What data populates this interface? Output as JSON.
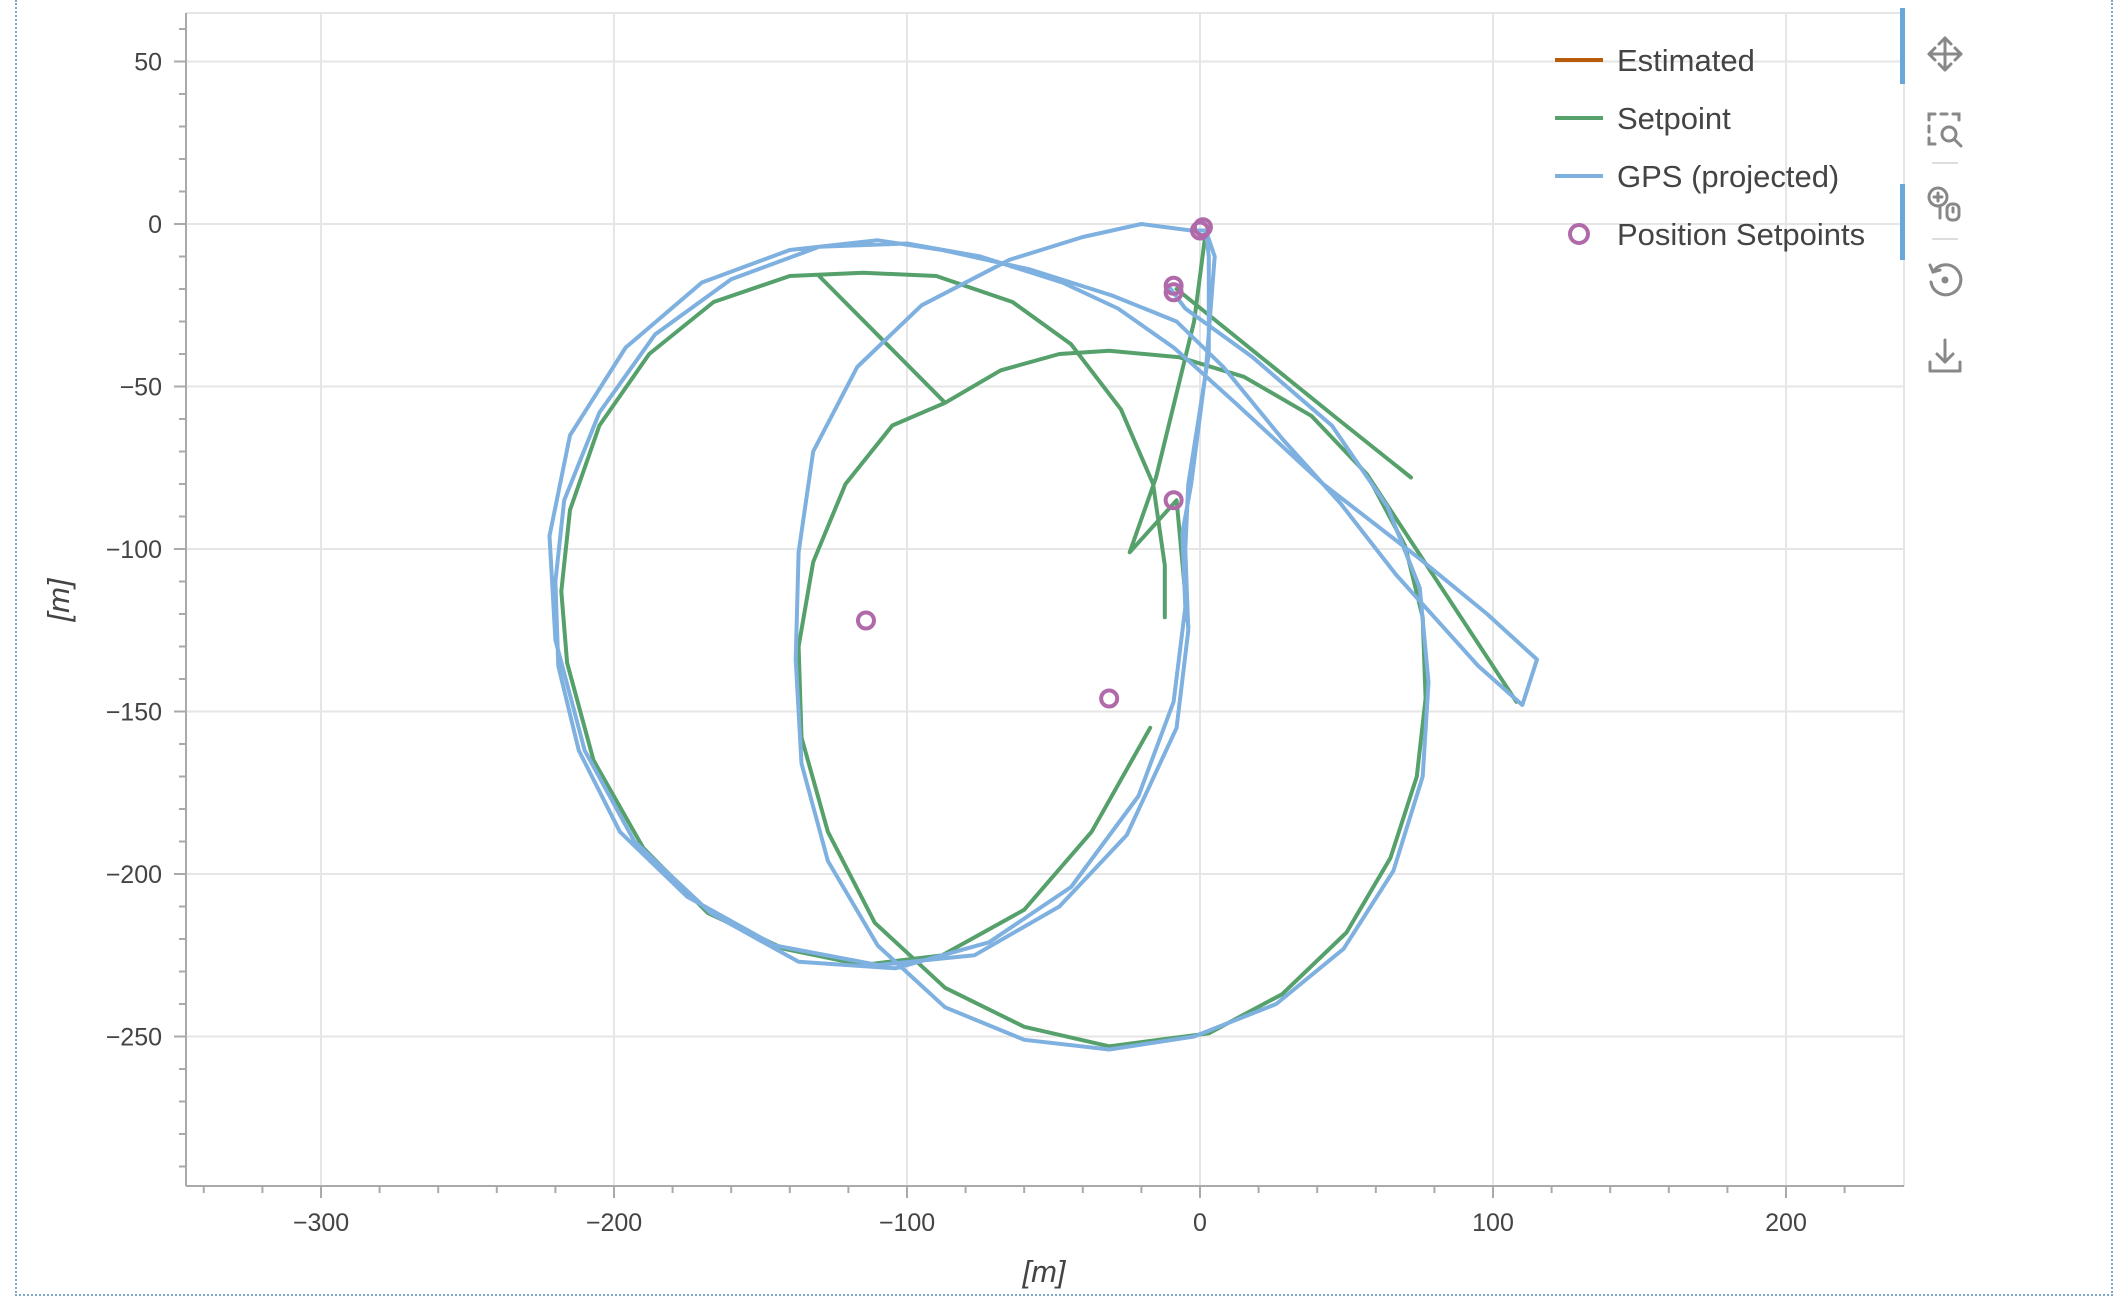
{
  "chart_data": {
    "type": "line",
    "title": "",
    "xlabel": "[m]",
    "ylabel": "[m]",
    "xlim": [
      -345,
      240
    ],
    "ylim": [
      -295,
      65
    ],
    "xticks": [
      -300,
      -200,
      -100,
      0,
      100,
      200
    ],
    "yticks": [
      50,
      0,
      -50,
      -100,
      -150,
      -200,
      -250
    ],
    "xtick_labels": [
      "−300",
      "−200",
      "−100",
      "0",
      "100",
      "200"
    ],
    "ytick_labels": [
      "50",
      "0",
      "−50",
      "−100",
      "−150",
      "−200",
      "−250"
    ],
    "grid": true,
    "legend_position": "top-right",
    "series": [
      {
        "name": "Estimated",
        "kind": "line",
        "color": "#b85c0c",
        "points": []
      },
      {
        "name": "Setpoint",
        "kind": "line",
        "color": "#55a06b",
        "points": [
          [
            2,
            -2
          ],
          [
            -2,
            -30
          ],
          [
            -15,
            -78
          ],
          [
            -24,
            -101
          ],
          [
            -8,
            -85
          ],
          [
            -4,
            -124
          ],
          [
            -17,
            -155
          ],
          [
            -37,
            -187
          ],
          [
            -60,
            -211
          ],
          [
            -88,
            -225
          ],
          [
            -115,
            -228
          ],
          [
            -142,
            -223
          ],
          [
            -168,
            -212
          ],
          [
            -190,
            -192
          ],
          [
            -207,
            -165
          ],
          [
            -216,
            -135
          ],
          [
            -218,
            -113
          ],
          [
            -215,
            -88
          ],
          [
            -205,
            -62
          ],
          [
            -188,
            -40
          ],
          [
            -166,
            -24
          ],
          [
            -140,
            -16
          ],
          [
            -115,
            -15
          ],
          [
            -90,
            -16
          ],
          [
            -64,
            -24
          ],
          [
            -44,
            -37
          ],
          [
            -27,
            -57
          ],
          [
            -16,
            -80
          ],
          [
            -12,
            -105
          ],
          [
            -12,
            -121
          ],
          [
            -130,
            -16
          ],
          [
            -87,
            -55
          ],
          [
            -87,
            -55
          ],
          [
            -68,
            -45
          ],
          [
            -48,
            -40
          ],
          [
            -31,
            -39
          ],
          [
            -7,
            -41
          ],
          [
            15,
            -47
          ],
          [
            38,
            -59
          ],
          [
            57,
            -77
          ],
          [
            70,
            -99
          ],
          [
            76,
            -121
          ],
          [
            77,
            -146
          ],
          [
            74,
            -170
          ],
          [
            65,
            -195
          ],
          [
            50,
            -218
          ],
          [
            28,
            -237
          ],
          [
            3,
            -249
          ],
          [
            -31,
            -253
          ],
          [
            -60,
            -247
          ],
          [
            -87,
            -235
          ],
          [
            -111,
            -215
          ],
          [
            -127,
            -187
          ],
          [
            -136,
            -158
          ],
          [
            -137,
            -130
          ],
          [
            -132,
            -104
          ],
          [
            -121,
            -80
          ],
          [
            -105,
            -62
          ],
          [
            -87,
            -55
          ],
          [
            57,
            -77
          ],
          [
            108,
            -147
          ],
          [
            -8,
            -20
          ],
          [
            47,
            -60
          ],
          [
            72,
            -78
          ]
        ]
      },
      {
        "name": "GPS (projected)",
        "kind": "line",
        "color": "#7eb0e0",
        "points": [
          [
            2,
            -2
          ],
          [
            3,
            -10
          ],
          [
            3,
            -40
          ],
          [
            -4,
            -80
          ],
          [
            -5,
            -100
          ],
          [
            -4,
            -125
          ],
          [
            -8,
            -155
          ],
          [
            -25,
            -188
          ],
          [
            -48,
            -210
          ],
          [
            -77,
            -225
          ],
          [
            -110,
            -228
          ],
          [
            -145,
            -222
          ],
          [
            -175,
            -207
          ],
          [
            -198,
            -187
          ],
          [
            -212,
            -162
          ],
          [
            -219,
            -136
          ],
          [
            -220,
            -110
          ],
          [
            -217,
            -85
          ],
          [
            -205,
            -58
          ],
          [
            -186,
            -34
          ],
          [
            -160,
            -17
          ],
          [
            -130,
            -7
          ],
          [
            -100,
            -6
          ],
          [
            -75,
            -10
          ],
          [
            -47,
            -18
          ],
          [
            -28,
            -26
          ],
          [
            -9,
            -38
          ],
          [
            -4,
            -42
          ],
          [
            -4,
            -42
          ],
          [
            12,
            -55
          ],
          [
            42,
            -80
          ],
          [
            75,
            -103
          ],
          [
            98,
            -120
          ],
          [
            115,
            -134
          ],
          [
            110,
            -148
          ],
          [
            95,
            -136
          ],
          [
            67,
            -108
          ],
          [
            48,
            -86
          ],
          [
            28,
            -66
          ],
          [
            8,
            -44
          ],
          [
            -8,
            -30
          ],
          [
            -8,
            -30
          ],
          [
            -30,
            -22
          ],
          [
            -58,
            -14
          ],
          [
            -88,
            -8
          ],
          [
            -110,
            -5
          ],
          [
            -140,
            -8
          ],
          [
            -170,
            -18
          ],
          [
            -196,
            -38
          ],
          [
            -215,
            -65
          ],
          [
            -222,
            -96
          ],
          [
            -220,
            -128
          ],
          [
            -210,
            -162
          ],
          [
            -193,
            -190
          ],
          [
            -167,
            -212
          ],
          [
            -137,
            -227
          ],
          [
            -104,
            -229
          ],
          [
            -72,
            -221
          ],
          [
            -44,
            -204
          ],
          [
            -21,
            -176
          ],
          [
            -9,
            -147
          ],
          [
            -5,
            -118
          ],
          [
            -6,
            -95
          ],
          [
            -3,
            -80
          ],
          [
            2,
            -45
          ],
          [
            5,
            -10
          ],
          [
            2,
            -2
          ],
          [
            -3,
            -2
          ],
          [
            -20,
            0
          ],
          [
            -40,
            -4
          ],
          [
            -65,
            -11
          ],
          [
            -95,
            -25
          ],
          [
            -117,
            -44
          ],
          [
            -132,
            -70
          ],
          [
            -137,
            -101
          ],
          [
            -138,
            -134
          ],
          [
            -136,
            -166
          ],
          [
            -127,
            -196
          ],
          [
            -110,
            -222
          ],
          [
            -87,
            -241
          ],
          [
            -60,
            -251
          ],
          [
            -31,
            -254
          ],
          [
            -2,
            -250
          ],
          [
            26,
            -240
          ],
          [
            49,
            -223
          ],
          [
            66,
            -199
          ],
          [
            76,
            -170
          ],
          [
            78,
            -141
          ],
          [
            75,
            -112
          ],
          [
            64,
            -87
          ],
          [
            45,
            -62
          ],
          [
            18,
            -41
          ],
          [
            -5,
            -26
          ],
          [
            -10,
            -20
          ]
        ]
      },
      {
        "name": "Position Setpoints",
        "kind": "scatter",
        "color": "#b06aaa",
        "points": [
          [
            1,
            -1
          ],
          [
            0,
            -2
          ],
          [
            -9,
            -19
          ],
          [
            -9,
            -21
          ],
          [
            -9,
            -85
          ],
          [
            -114,
            -122
          ],
          [
            -31,
            -146
          ]
        ]
      }
    ]
  },
  "legend": {
    "items": [
      {
        "label": "Estimated",
        "color": "#b85c0c",
        "marker": "line"
      },
      {
        "label": "Setpoint",
        "color": "#55a06b",
        "marker": "line"
      },
      {
        "label": "GPS (projected)",
        "color": "#7eb0e0",
        "marker": "line"
      },
      {
        "label": "Position Setpoints",
        "color": "#b06aaa",
        "marker": "circle"
      }
    ]
  },
  "toolbar": {
    "tools": [
      {
        "name": "pan",
        "icon": "pan-move-icon",
        "active": true
      },
      {
        "name": "box-zoom",
        "icon": "box-zoom-icon",
        "active": false
      },
      {
        "name": "wheel-zoom",
        "icon": "wheel-zoom-icon",
        "active": true
      },
      {
        "name": "reset",
        "icon": "reset-icon",
        "active": false
      },
      {
        "name": "save",
        "icon": "save-icon",
        "active": false
      }
    ],
    "accent_color": "#6ba6d9"
  }
}
